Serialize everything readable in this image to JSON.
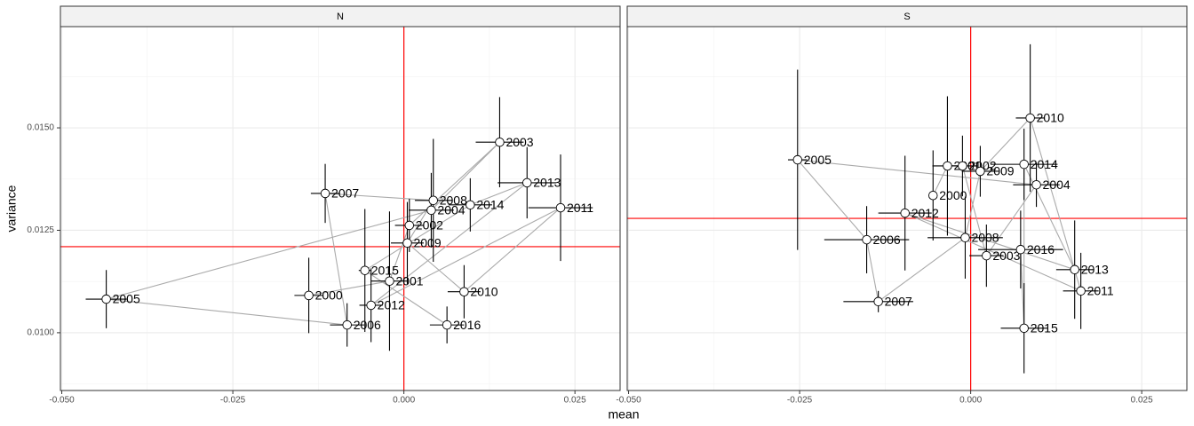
{
  "chart_data": {
    "type": "scatter",
    "xlabel": "mean",
    "ylabel": "variance",
    "xlim": [
      -0.0502,
      0.0316
    ],
    "ylim": [
      0.00859,
      0.01747
    ],
    "xticks": [
      {
        "value": -0.05,
        "label": "-0.050"
      },
      {
        "value": -0.025,
        "label": "-0.025"
      },
      {
        "value": 0,
        "label": "0.000"
      },
      {
        "value": 0.025,
        "label": "0.025"
      }
    ],
    "yticks": [
      {
        "value": 0.01,
        "label": "0.0100"
      },
      {
        "value": 0.0125,
        "label": "0.0125"
      },
      {
        "value": 0.015,
        "label": "0.0150"
      }
    ],
    "grid": true,
    "point_color": "#ffffff",
    "error_color": "#000000",
    "path_color": "#aaaaaa",
    "ref_color": "#ff0000",
    "facets": [
      {
        "name": "N",
        "ref_x": 0,
        "ref_y": 0.0121,
        "categories": [
          "2000",
          "2001",
          "2002",
          "2003",
          "2004",
          "2005",
          "2006",
          "2007",
          "2008",
          "2009",
          "2010",
          "2011",
          "2012",
          "2013",
          "2014",
          "2015",
          "2016"
        ],
        "x": [
          -0.0139,
          -0.0021,
          0.0008,
          0.014,
          0.004,
          -0.0435,
          -0.0083,
          -0.0115,
          0.0043,
          0.0005,
          0.0088,
          0.0229,
          -0.0048,
          0.018,
          0.0097,
          -0.0057,
          0.0063
        ],
        "y": [
          0.01091,
          0.01126,
          0.01262,
          0.01465,
          0.01299,
          0.01082,
          0.01019,
          0.0134,
          0.01323,
          0.01219,
          0.011,
          0.01305,
          0.01067,
          0.01366,
          0.01312,
          0.01152,
          0.01019
        ],
        "xerr": [
          0.0021,
          0.0027,
          0.0021,
          0.0035,
          0.0033,
          0.003,
          0.0025,
          0.0021,
          0.0027,
          0.0024,
          0.0024,
          0.0047,
          0.0017,
          0.0043,
          0.0032,
          0.0009,
          0.0025
        ],
        "yerr": [
          0.00092,
          0.0017,
          0.00065,
          0.0011,
          0.00091,
          0.00071,
          0.00053,
          0.00072,
          0.0015,
          0.001,
          0.00065,
          0.0013,
          0.0009,
          0.00087,
          0.00065,
          0.0015,
          0.00045
        ]
      },
      {
        "name": "S",
        "ref_x": 0,
        "ref_y": 0.01279,
        "categories": [
          "2000",
          "2001",
          "2002",
          "2003",
          "2004",
          "2005",
          "2006",
          "2007",
          "2008",
          "2009",
          "2010",
          "2011",
          "2012",
          "2013",
          "2014",
          "2015",
          "2016"
        ],
        "x": [
          -0.0055,
          -0.0034,
          -0.0012,
          0.0023,
          0.0096,
          -0.0253,
          -0.0152,
          -0.0135,
          -0.0008,
          0.0014,
          0.0087,
          0.0161,
          -0.0096,
          0.0152,
          0.0078,
          0.0078,
          0.0073
        ],
        "y": [
          0.01335,
          0.01407,
          0.01407,
          0.01188,
          0.01361,
          0.01422,
          0.01227,
          0.01076,
          0.01232,
          0.01394,
          0.01524,
          0.01102,
          0.01292,
          0.01154,
          0.01411,
          0.01011,
          0.01203
        ],
        "xerr": [
          0.0003,
          0.0022,
          0.0022,
          0.0025,
          0.0034,
          0.0014,
          0.0062,
          0.0051,
          0.0055,
          0.0027,
          0.0021,
          0.0026,
          0.0039,
          0.0027,
          0.0049,
          0.0034,
          0.0062
        ],
        "yerr": [
          0.0011,
          0.0017,
          0.00074,
          0.00076,
          0.00054,
          0.0022,
          0.00082,
          0.00026,
          0.001,
          0.00062,
          0.0018,
          0.00093,
          0.0014,
          0.0012,
          0.00087,
          0.0011,
          0.00095
        ]
      }
    ]
  }
}
